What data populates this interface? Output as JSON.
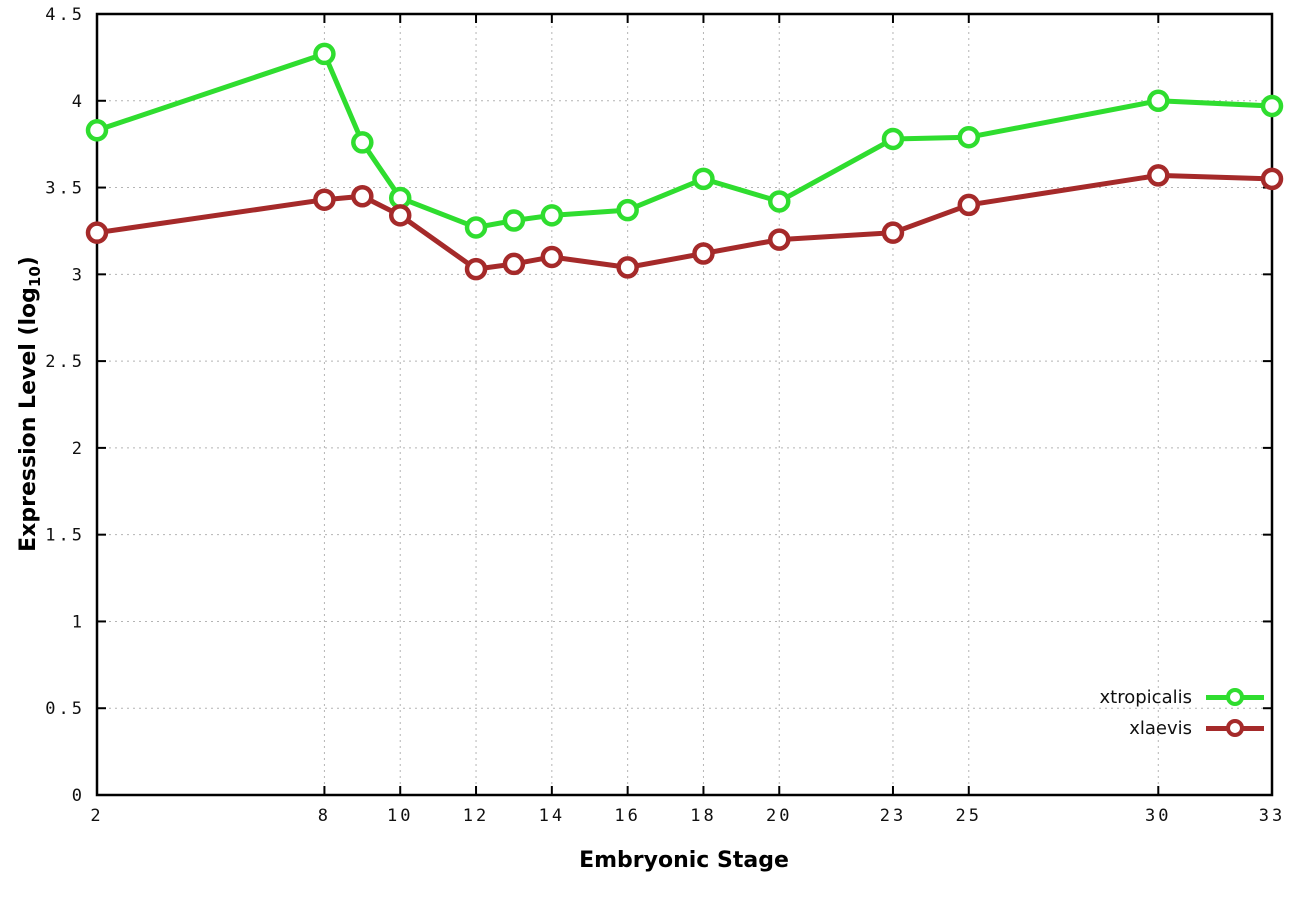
{
  "chart_data": {
    "type": "line",
    "title": "",
    "xlabel": "Embryonic Stage",
    "ylabel": "Expression Level (log10)",
    "ylabel_main": "Expression Level (log",
    "ylabel_sub": "10",
    "ylabel_close": ")",
    "x": [
      2,
      8,
      9,
      10,
      12,
      13,
      14,
      16,
      18,
      20,
      23,
      25,
      30,
      33
    ],
    "series": [
      {
        "name": "xtropicalis",
        "color": "#2fdd2f",
        "values": [
          3.83,
          4.27,
          3.76,
          3.44,
          3.27,
          3.31,
          3.34,
          3.37,
          3.55,
          3.42,
          3.78,
          3.79,
          4.0,
          3.97
        ]
      },
      {
        "name": "xlaevis",
        "color": "#a52a2a",
        "values": [
          3.24,
          3.43,
          3.45,
          3.34,
          3.03,
          3.06,
          3.1,
          3.04,
          3.12,
          3.2,
          3.24,
          3.4,
          3.57,
          3.55
        ]
      }
    ],
    "xlim": [
      2,
      33
    ],
    "ylim": [
      0,
      4.5
    ],
    "xticks": [
      2,
      8,
      10,
      12,
      14,
      16,
      18,
      20,
      23,
      25,
      30,
      33
    ],
    "xtick_labels": [
      "2",
      "8",
      "10",
      "12",
      "14",
      "16",
      "18",
      "20",
      "23",
      "25",
      "30",
      "33"
    ],
    "yticks": [
      0,
      0.5,
      1,
      1.5,
      2,
      2.5,
      3,
      3.5,
      4,
      4.5
    ],
    "ytick_labels": [
      "0",
      "0.5",
      "1",
      "1.5",
      "2",
      "2.5",
      "3",
      "3.5",
      "4",
      "4.5"
    ],
    "grid": true,
    "grid_style": "dotted",
    "legend_position": "bottom-right-inside",
    "marker": "open-circle",
    "background_color": "#ffffff",
    "border_color": "#000000"
  }
}
